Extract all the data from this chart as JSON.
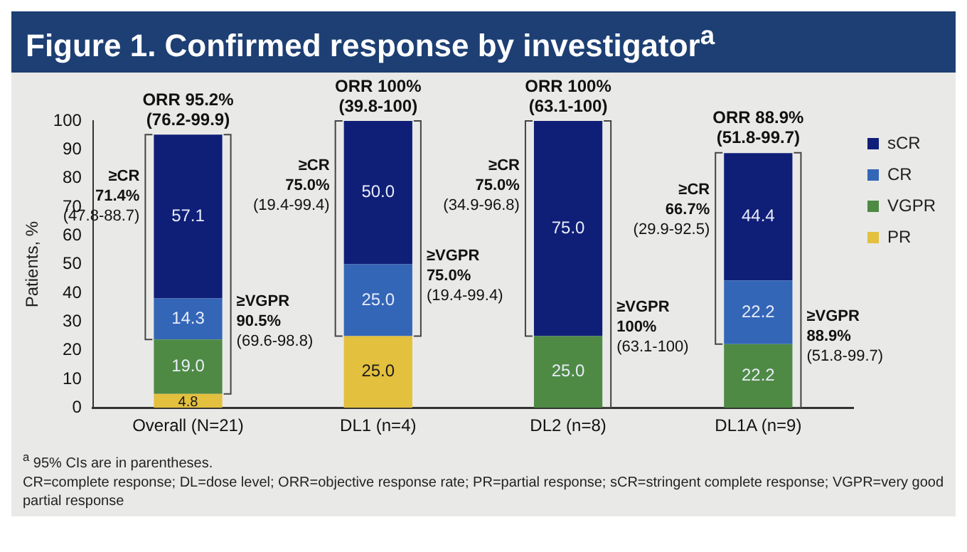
{
  "chart_data": {
    "type": "bar",
    "title": "Figure 1. Confirmed response by investigator$^{a}$",
    "ylabel": "Patients, %",
    "categories": [
      "Overall (N=21)",
      "DL1 (n=4)",
      "DL2 (n=8)",
      "DL1A (n=9)"
    ],
    "series": [
      {
        "name": "PR",
        "color": "#e3c03e",
        "values": [
          4.8,
          25.0,
          null,
          null
        ],
        "value_labels": [
          "4.8",
          "25.0",
          null,
          null
        ]
      },
      {
        "name": "VGPR",
        "color": "#4e8a44",
        "values": [
          19.0,
          null,
          25.0,
          22.2
        ],
        "value_labels": [
          "19.0",
          null,
          "25.0",
          "22.2"
        ]
      },
      {
        "name": "CR",
        "color": "#3466b8",
        "values": [
          14.3,
          25.0,
          null,
          22.2
        ],
        "value_labels": [
          "14.3",
          "25.0",
          null,
          "22.2"
        ]
      },
      {
        "name": "sCR",
        "color": "#0f1f78",
        "values": [
          57.1,
          50.0,
          75.0,
          44.4
        ],
        "value_labels": [
          "57.1",
          "50.0",
          "75.0",
          "44.4"
        ]
      }
    ],
    "stacked": true,
    "grid": false,
    "legend": "top right",
    "ylim": [
      0,
      100
    ],
    "yticks": [
      0,
      10,
      20,
      30,
      40,
      50,
      60,
      70,
      80,
      90,
      100
    ],
    "annotations": [
      {
        "text": "ORR 95.2%\n(76.2-99.9)",
        "x": "Overall (N=21)",
        "y": 95.2
      },
      "≥CR\n71.4%\n(47.8-88.7)",
      "≥VGPR\n90.5%\n(69.6-98.8)",
      {
        "text": "ORR 100%\n(39.8-100)",
        "x": "DL1 (n=4)",
        "y": 100
      },
      "≥CR\n75.0%\n(19.4-99.4)",
      "≥VGPR\n75.0%\n(19.4-99.4)",
      {
        "text": "ORR 100%\n(63.1-100)",
        "x": "DL2 (n=8)",
        "y": 100
      },
      "≥CR\n75.0%\n(34.9-96.8)",
      "≥VGPR\n100%\n(63.1-100)",
      {
        "text": "ORR 88.9%\n(51.8-99.7)",
        "x": "DL1A (n=9)",
        "y": 88.9
      },
      "≥CR\n66.7%\n(29.9-92.5)",
      "≥VGPR\n88.9%\n(51.8-99.7)",
      "$^{a}$ 95% CIs are in parentheses.",
      "CR=complete response; DL=dose level; ORR=objective response rate; PR=partial response; sCR=stringent complete response; VGPR=very good partial response"
    ]
  }
}
